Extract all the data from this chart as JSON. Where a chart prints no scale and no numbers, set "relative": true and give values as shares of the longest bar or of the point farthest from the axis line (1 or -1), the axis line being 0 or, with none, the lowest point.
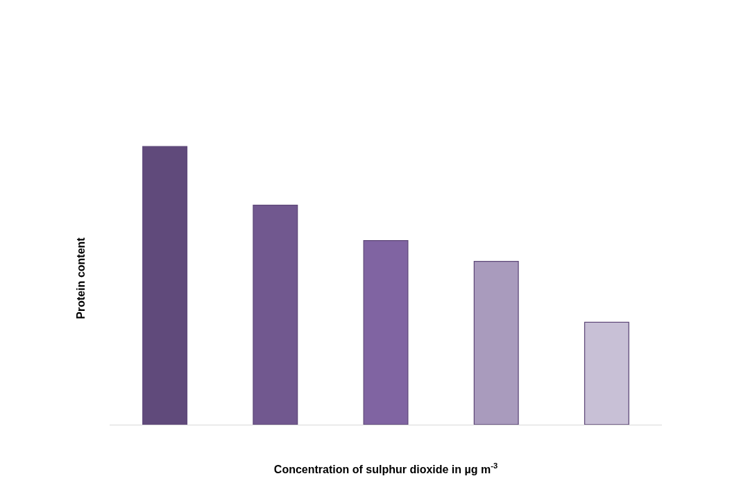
{
  "chart_data": {
    "type": "bar",
    "relative": true,
    "xlabel": "Concentration of sulphur dioxide in µg m$^{-3}$",
    "ylabel": "Protein content",
    "categories": [
      null,
      null,
      null,
      null,
      null
    ],
    "values": [
      1,
      0.789,
      0.662,
      0.587,
      0.368
    ],
    "colors": [
      "#604a7b",
      "#71588f",
      "#8064a2",
      "#a99bbd",
      "#c8c0d6"
    ]
  }
}
